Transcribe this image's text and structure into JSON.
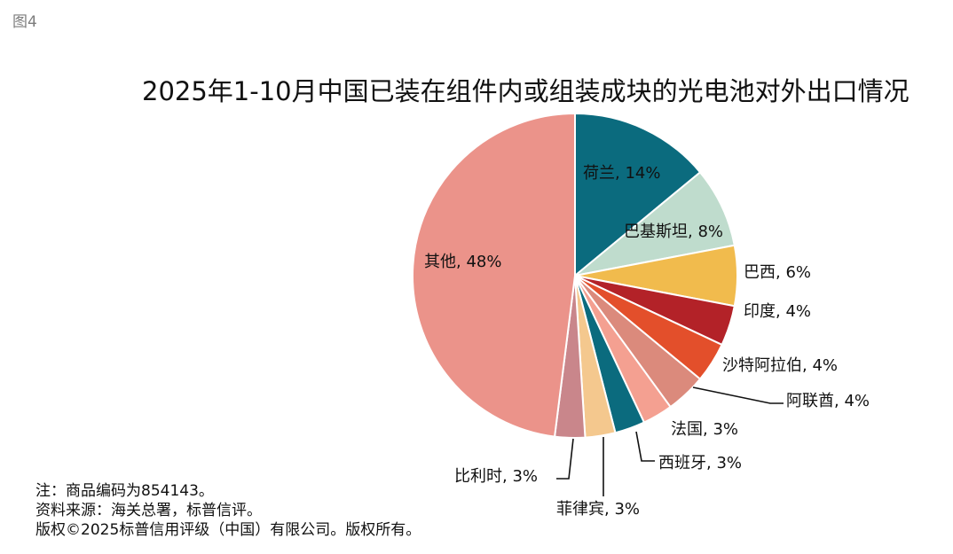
{
  "figure_label": "图4",
  "chart_data": {
    "type": "pie",
    "title": "2025年1-10月中国已装在组件内或组装成块的光电池对外出口情况",
    "label_format": "name_percent",
    "slices": [
      {
        "name": "荷兰",
        "value": 14,
        "label": "荷兰, 14%",
        "color": "#0b6b7e"
      },
      {
        "name": "巴基斯坦",
        "value": 8,
        "label": "巴基斯坦, 8%",
        "color": "#bfdccd"
      },
      {
        "name": "巴西",
        "value": 6,
        "label": "巴西, 6%",
        "color": "#f1bb4d"
      },
      {
        "name": "印度",
        "value": 4,
        "label": "印度, 4%",
        "color": "#b32228"
      },
      {
        "name": "沙特阿拉伯",
        "value": 4,
        "label": "沙特阿拉伯, 4%",
        "color": "#e34f2b"
      },
      {
        "name": "阿联酋",
        "value": 4,
        "label": "阿联酋, 4%",
        "color": "#db8a7c"
      },
      {
        "name": "法国",
        "value": 3,
        "label": "法国, 3%",
        "color": "#f4a091"
      },
      {
        "name": "西班牙",
        "value": 3,
        "label": "西班牙, 3%",
        "color": "#0b6b7e"
      },
      {
        "name": "菲律宾",
        "value": 3,
        "label": "菲律宾, 3%",
        "color": "#f4c88e"
      },
      {
        "name": "比利时",
        "value": 3,
        "label": "比利时, 3%",
        "color": "#c9868b"
      },
      {
        "name": "其他",
        "value": 48,
        "label": "其他, 48%",
        "color": "#eb938a"
      }
    ]
  },
  "notes": [
    "注：商品编码为854143。",
    "资料来源：海关总署，标普信评。",
    "版权©2025标普信用评级（中国）有限公司。版权所有。"
  ]
}
